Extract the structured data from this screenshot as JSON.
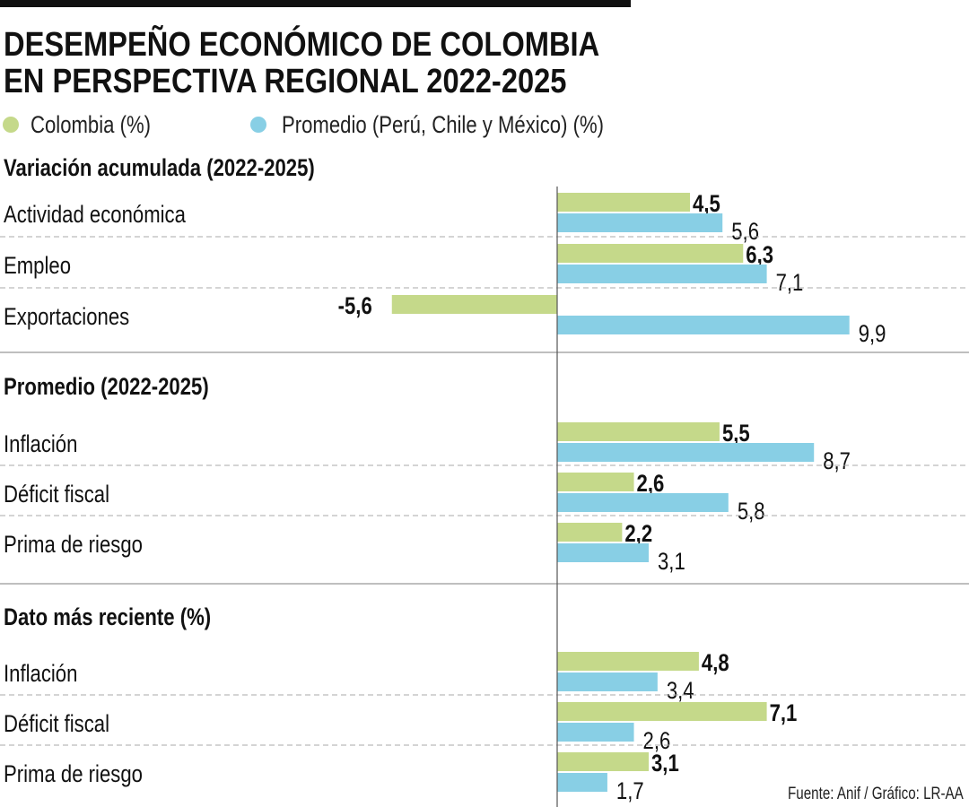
{
  "chart_data": {
    "type": "bar",
    "orientation": "horizontal",
    "title": "DESEMPEÑO ECONÓMICO DE COLOMBIA EN PERSPECTIVA REGIONAL 2022-2025",
    "title_lines": [
      "DESEMPEÑO ECONÓMICO DE COLOMBIA",
      "EN PERSPECTIVA REGIONAL 2022-2025"
    ],
    "legend": [
      {
        "name": "Colombia (%)",
        "color": "#c5d98a"
      },
      {
        "name": "Promedio (Perú, Chile y México) (%)",
        "color": "#88cfe5"
      }
    ],
    "legend_placement": "top",
    "grid": false,
    "xlim": [
      -5.6,
      9.9
    ],
    "sections": [
      {
        "title": "Variación acumulada (2022-2025)",
        "categories": [
          "Actividad económica",
          "Empleo",
          "Exportaciones"
        ],
        "series": [
          {
            "name": "Colombia (%)",
            "values": [
              4.5,
              6.3,
              -5.6
            ],
            "labels": [
              "4,5",
              "6,3",
              "-5,6"
            ]
          },
          {
            "name": "Promedio (Perú, Chile y México) (%)",
            "values": [
              5.6,
              7.1,
              9.9
            ],
            "labels": [
              "5,6",
              "7,1",
              "9,9"
            ]
          }
        ]
      },
      {
        "title": "Promedio (2022-2025)",
        "categories": [
          "Inflación",
          "Déficit fiscal",
          "Prima de riesgo"
        ],
        "series": [
          {
            "name": "Colombia (%)",
            "values": [
              5.5,
              2.6,
              2.2
            ],
            "labels": [
              "5,5",
              "2,6",
              "2,2"
            ]
          },
          {
            "name": "Promedio (Perú, Chile y México) (%)",
            "values": [
              8.7,
              5.8,
              3.1
            ],
            "labels": [
              "8,7",
              "5,8",
              "3,1"
            ]
          }
        ]
      },
      {
        "title": "Dato más reciente (%)",
        "categories": [
          "Inflación",
          "Déficit fiscal",
          "Prima de riesgo"
        ],
        "series": [
          {
            "name": "Colombia (%)",
            "values": [
              4.8,
              7.1,
              3.1
            ],
            "labels": [
              "4,8",
              "7,1",
              "3,1"
            ]
          },
          {
            "name": "Promedio (Perú, Chile y México) (%)",
            "values": [
              3.4,
              2.6,
              1.7
            ],
            "labels": [
              "3,4",
              "2,6",
              "1,7"
            ]
          }
        ]
      }
    ],
    "source": "Fuente: Anif / Gráfico: LR-AA"
  }
}
